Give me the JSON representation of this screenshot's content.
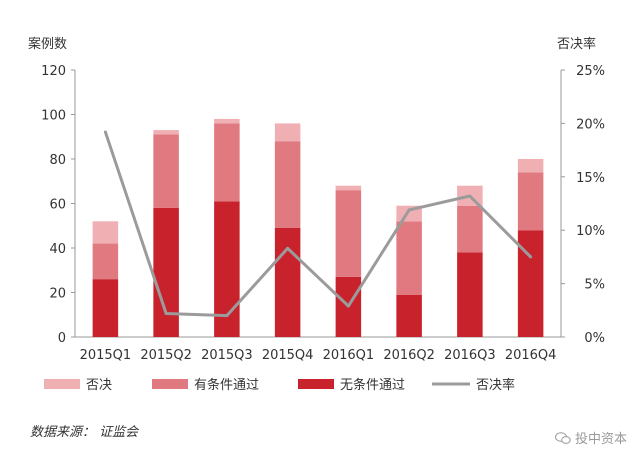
{
  "chart_data": {
    "type": "bar",
    "stacked": true,
    "y_left_label": "案例数",
    "y_right_label": "否决率",
    "y_left_lim": [
      0,
      120
    ],
    "y_left_ticks": [
      "0",
      "20",
      "40",
      "60",
      "80",
      "100",
      "120"
    ],
    "y_right_lim": [
      0,
      25
    ],
    "y_right_ticks": [
      "0%",
      "5%",
      "10%",
      "15%",
      "20%",
      "25%"
    ],
    "categories": [
      "2015Q1",
      "2015Q2",
      "2015Q3",
      "2015Q4",
      "2016Q1",
      "2016Q2",
      "2016Q3",
      "2016Q4"
    ],
    "series": [
      {
        "name": "无条件通过",
        "type": "bar",
        "axis": "left",
        "color": "#c8232c",
        "values": [
          26,
          58,
          61,
          49,
          27,
          19,
          38,
          48
        ]
      },
      {
        "name": "有条件通过",
        "type": "bar",
        "axis": "left",
        "color": "#e07a80",
        "values": [
          16,
          33,
          35,
          39,
          39,
          33,
          21,
          26
        ]
      },
      {
        "name": "否决",
        "type": "bar",
        "axis": "left",
        "color": "#f0b0b3",
        "values": [
          10,
          2,
          2,
          8,
          2,
          7,
          9,
          6
        ]
      },
      {
        "name": "否决率",
        "type": "line",
        "axis": "right",
        "color": "#9b9b9b",
        "values": [
          19.2,
          2.2,
          2.0,
          8.3,
          2.9,
          11.9,
          13.2,
          7.5
        ]
      }
    ],
    "legend": {
      "placement": "bottom",
      "order": [
        "否决",
        "有条件通过",
        "无条件通过",
        "否决率"
      ]
    },
    "grid": false
  },
  "source_text": "数据来源： 证监会",
  "watermark_text": "投中资本"
}
